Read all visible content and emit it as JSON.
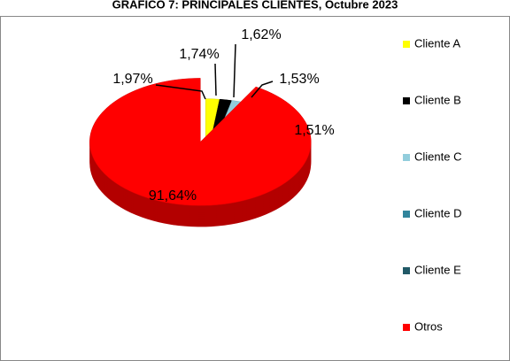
{
  "chart_data": {
    "type": "pie3d",
    "title": "GRAFICO 7: PRINCIPALES CLIENTES, Octubre 2023",
    "categories": [
      "Cliente A",
      "Cliente B",
      "Cliente C",
      "Cliente D",
      "Cliente E",
      "Otros"
    ],
    "values": [
      1.97,
      1.74,
      1.62,
      1.53,
      1.51,
      91.64
    ],
    "value_labels": [
      "1,97%",
      "1,74%",
      "1,62%",
      "1,53%",
      "1,51%",
      "91,64%"
    ],
    "colors": [
      "#ffff00",
      "#000000",
      "#92cddc",
      "#31859c",
      "#215967",
      "#ff0000"
    ],
    "legend": "right"
  }
}
